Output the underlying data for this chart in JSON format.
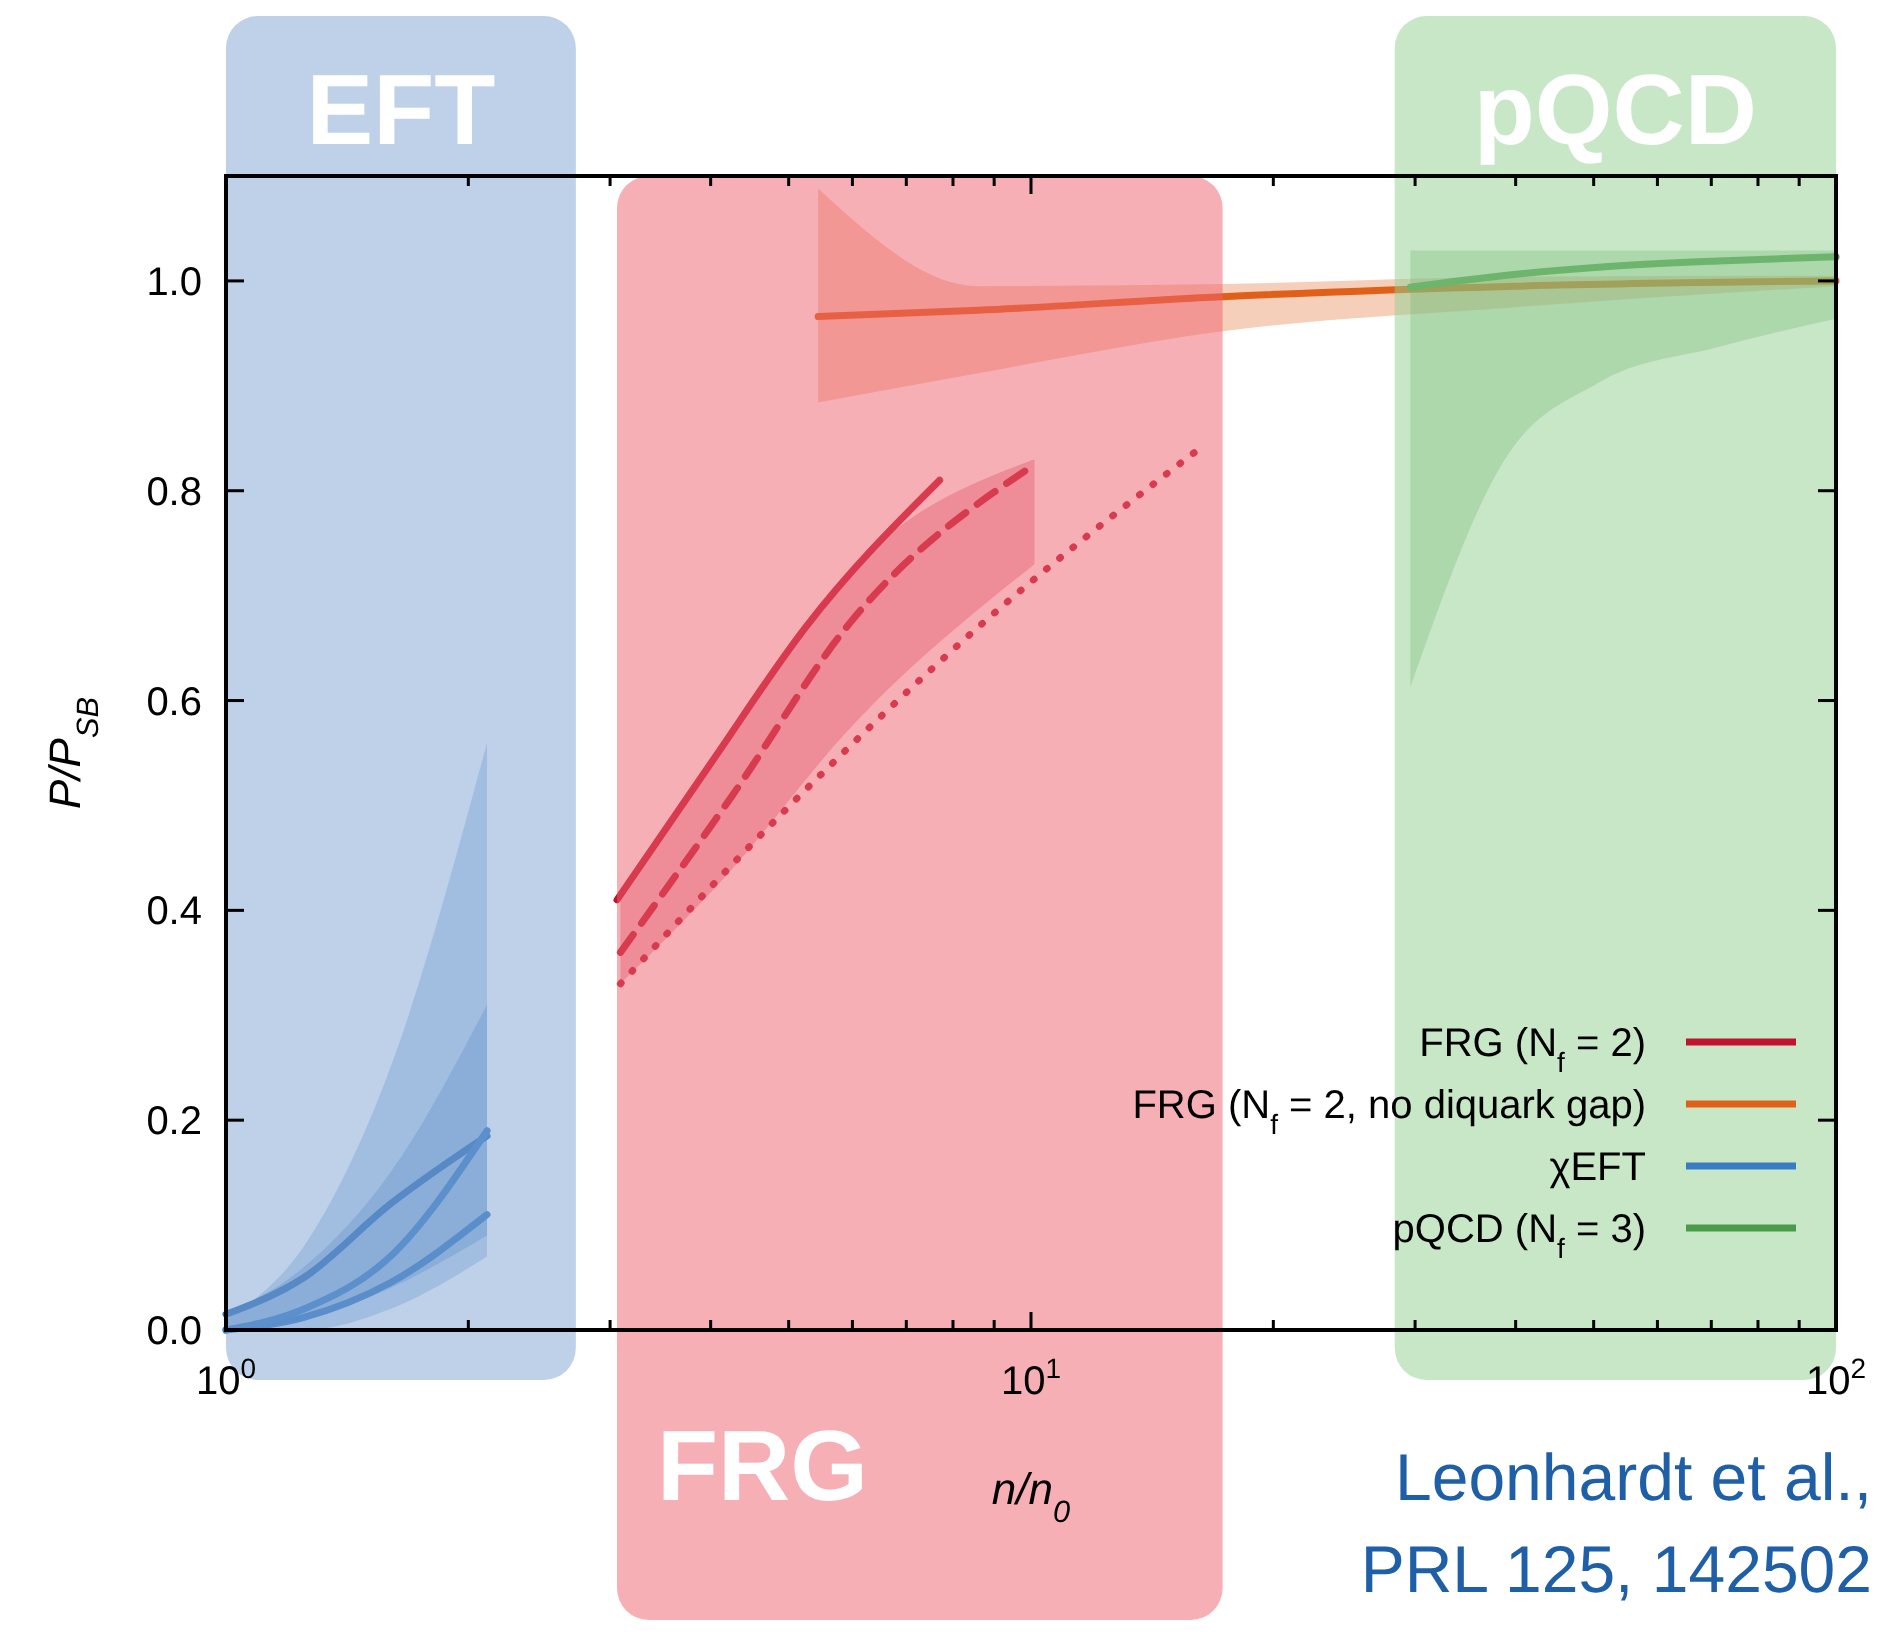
{
  "chart_data": {
    "type": "line",
    "xlabel": "n/n$_{0}$",
    "ylabel": "P/P$_{SB}$",
    "log": "x",
    "legend": "bottom right",
    "xlim": [
      1,
      100
    ],
    "ylim": [
      0,
      1.1
    ],
    "xticks": [
      {
        "value": 1,
        "label": "10$^{0}$"
      },
      {
        "value": 2,
        "label": null
      },
      {
        "value": 3,
        "label": null
      },
      {
        "value": 4,
        "label": null
      },
      {
        "value": 5,
        "label": null
      },
      {
        "value": 6,
        "label": null
      },
      {
        "value": 7,
        "label": null
      },
      {
        "value": 8,
        "label": null
      },
      {
        "value": 9,
        "label": null
      },
      {
        "value": 10,
        "label": "10$^{1}$"
      },
      {
        "value": 20,
        "label": null
      },
      {
        "value": 30,
        "label": null
      },
      {
        "value": 40,
        "label": null
      },
      {
        "value": 50,
        "label": null
      },
      {
        "value": 60,
        "label": null
      },
      {
        "value": 70,
        "label": null
      },
      {
        "value": 80,
        "label": null
      },
      {
        "value": 90,
        "label": null
      },
      {
        "value": 100,
        "label": "10$^{2}$"
      }
    ],
    "yticks": [
      {
        "value": 0,
        "label": "0.0"
      },
      {
        "value": 0.2,
        "label": "0.2"
      },
      {
        "value": 0.4,
        "label": "0.4"
      },
      {
        "value": 0.6,
        "label": "0.6"
      },
      {
        "value": 0.8,
        "label": "0.8"
      },
      {
        "value": 1,
        "label": "1.0"
      }
    ],
    "series": [
      {
        "name": "FRG (N$_{f}$ = 2)",
        "color": "#c0142e",
        "line_style": "solid",
        "x": [
          3.06,
          4.0,
          5.25,
          7.7
        ],
        "values": [
          0.41,
          0.54,
          0.67,
          0.81
        ]
      },
      {
        "color": "#c0142e",
        "line_style": "dashed",
        "x": [
          3.09,
          4.26,
          5.9,
          10.1
        ],
        "values": [
          0.36,
          0.51,
          0.67,
          0.825
        ],
        "lower": [
          0.33,
          0.44,
          0.57,
          0.73
        ],
        "upper": [
          0.41,
          0.57,
          0.72,
          0.83
        ]
      },
      {
        "color": "#c0142e",
        "line_style": "dotted",
        "x": [
          3.09,
          4.87,
          8.6,
          16.5
        ],
        "values": [
          0.33,
          0.49,
          0.67,
          0.845
        ]
      },
      {
        "name": "FRG (N$_{f}$ = 2, no diquark gap)",
        "color": "#e0601a",
        "line_style": "solid",
        "x": [
          5.44,
          8.6,
          17.3,
          40,
          100
        ],
        "values": [
          0.966,
          0.972,
          0.985,
          0.995,
          1.0
        ],
        "lower": [
          0.884,
          0.912,
          0.952,
          0.975,
          0.995
        ],
        "upper": [
          1.088,
          0.995,
          0.997,
          1.004,
          1.005
        ]
      },
      {
        "name": "χEFT",
        "color": "#3a7cc4",
        "line_style": "solid",
        "x": [
          1,
          1.25,
          1.6,
          2.11
        ],
        "values": [
          0.0,
          0.012,
          0.045,
          0.11
        ],
        "lower": [
          0.0,
          0.0,
          0.02,
          0.07
        ],
        "upper": [
          0.01,
          0.08,
          0.25,
          0.56
        ]
      },
      {
        "color": "#2f6fb8",
        "line_style": "solid",
        "x": [
          1,
          1.25,
          1.6,
          2.11
        ],
        "values": [
          0.015,
          0.05,
          0.12,
          0.185
        ],
        "lower": [
          0.0,
          0.01,
          0.04,
          0.09
        ],
        "upper": [
          0.015,
          0.06,
          0.15,
          0.31
        ]
      },
      {
        "color": "#3a7cc4",
        "line_style": "solid",
        "x": [
          1,
          1.25,
          1.6,
          2.11
        ],
        "values": [
          0.0,
          0.02,
          0.07,
          0.19
        ]
      },
      {
        "name": "pQCD (N$_{f}$ = 3)",
        "color": "#4a9a4a",
        "line_style": "solid",
        "x": [
          29.6,
          38.5,
          50.7,
          71.4,
          100
        ],
        "values": [
          0.994,
          1.005,
          1.013,
          1.019,
          1.023
        ],
        "lower": [
          0.613,
          0.826,
          0.903,
          0.937,
          0.964
        ],
        "upper": [
          1.029,
          1.029,
          1.029,
          1.029,
          1.029
        ]
      }
    ],
    "bands": [
      {
        "axis": "x",
        "from": 1,
        "to": 2.72,
        "label": "EFT",
        "color": "#7ea3d4"
      },
      {
        "axis": "x",
        "from": 3.06,
        "to": 17.3,
        "label": "FRG",
        "color": "#f0606e"
      },
      {
        "axis": "x",
        "from": 28.3,
        "to": 100,
        "label": "pQCD",
        "color": "#90d090"
      }
    ],
    "annotations": [
      "Leonhardt et al.,",
      "PRL 125, 142502"
    ]
  }
}
